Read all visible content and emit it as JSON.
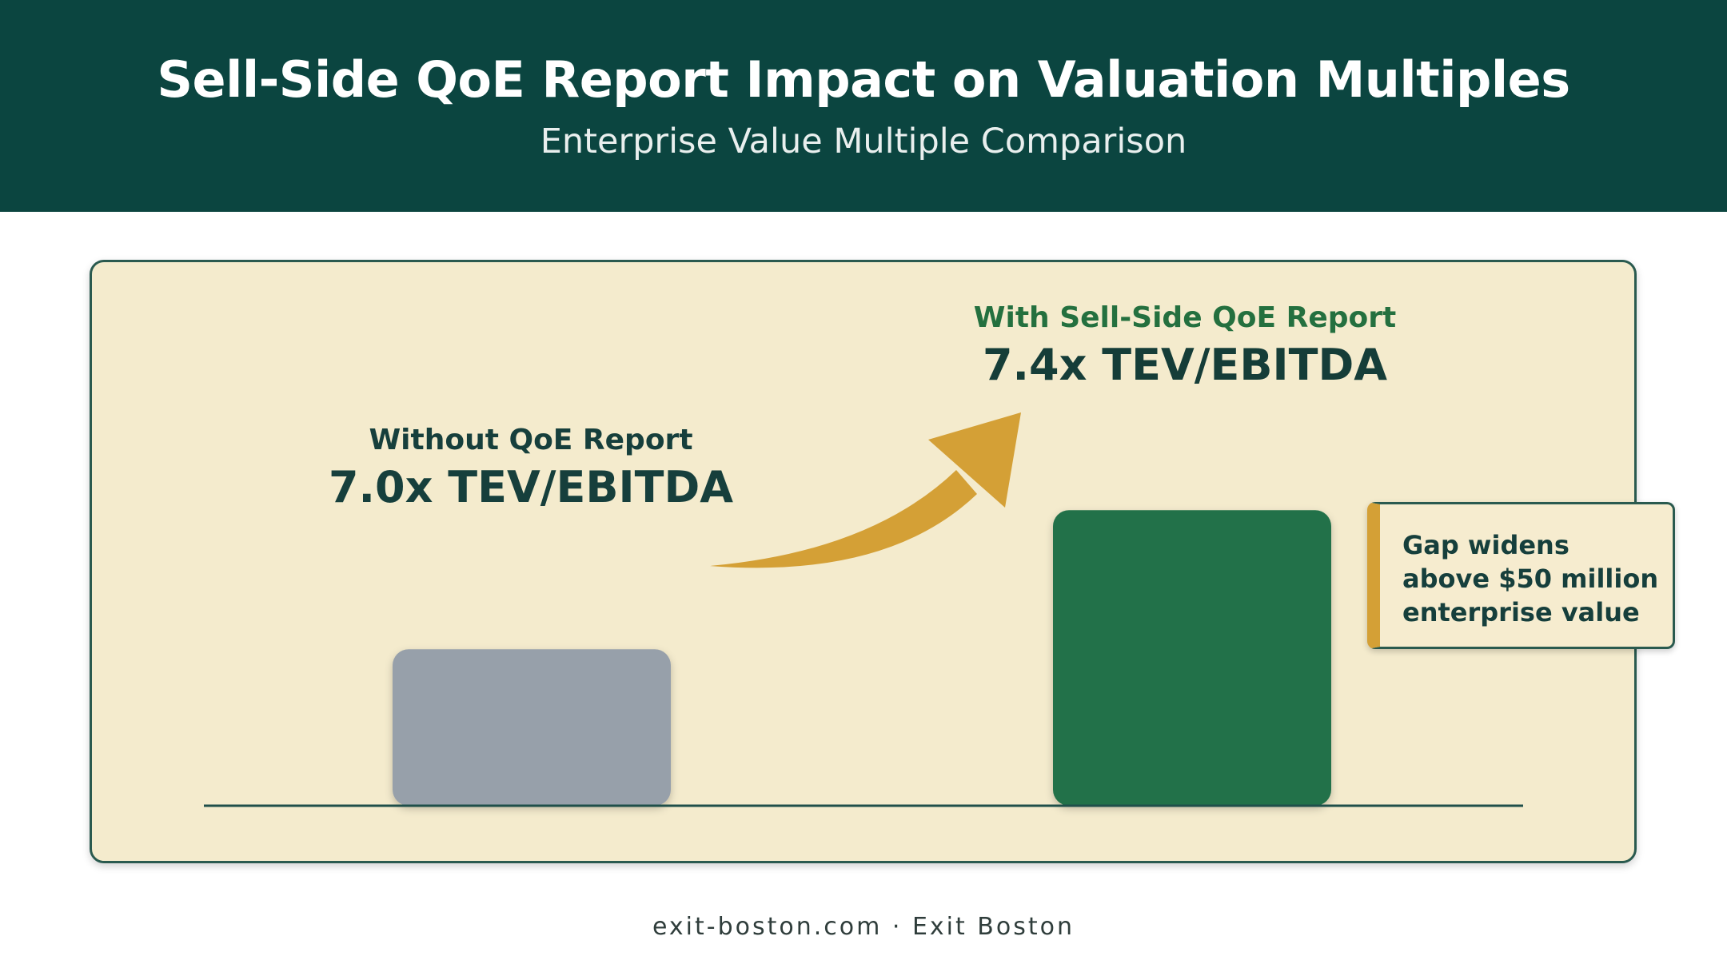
{
  "header": {
    "title": "Sell-Side QoE Report Impact on Valuation Multiples",
    "subtitle": "Enterprise Value Multiple Comparison"
  },
  "chart_data": {
    "type": "bar",
    "categories": [
      "Without QoE Report",
      "With Sell-Side QoE Report"
    ],
    "values": [
      7.0,
      7.4
    ],
    "value_labels": [
      "7.0x TEV/EBITDA",
      "7.4x TEV/EBITDA"
    ],
    "bar_colors": [
      "#97a0aa",
      "#22714a"
    ],
    "annotation": "Gap widens above $50 million enterprise value",
    "arrow_color": "#d4a036",
    "grid": false
  },
  "footer": {
    "text": "exit-boston.com · Exit Boston"
  }
}
